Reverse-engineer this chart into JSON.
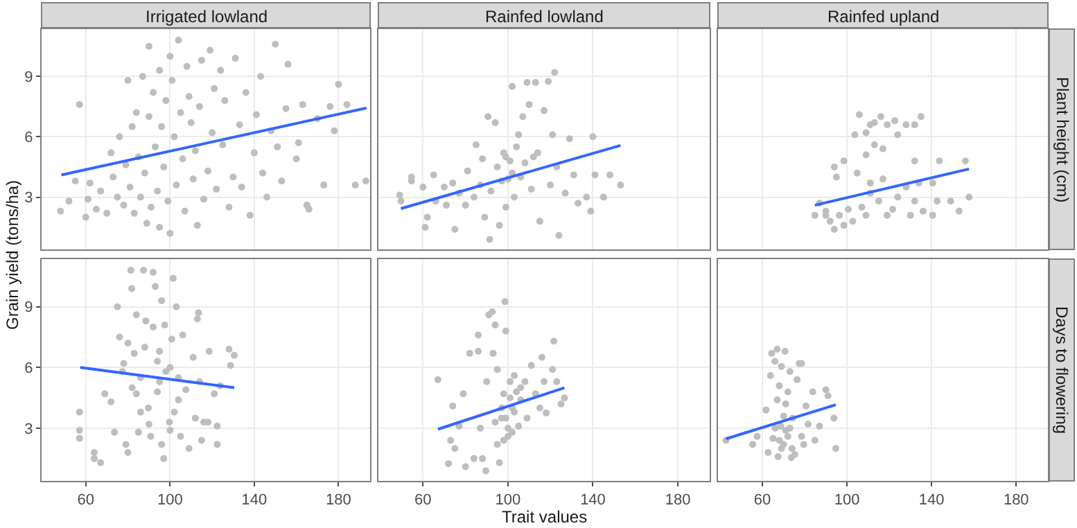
{
  "chart_data": [
    {
      "type": "scatter",
      "title": "Irrigated lowland",
      "ylabel": "Grain yield (tons/ha)",
      "xlim": [
        39,
        195
      ],
      "xticks": [
        60,
        100,
        140,
        180
      ],
      "ylim": [
        0.4,
        11.35
      ],
      "yticks": [
        3,
        6,
        9
      ],
      "grid": true,
      "tick_labels": "y",
      "marker": "circle",
      "series": [
        {
          "color": "#bebebe",
          "x": [
            48,
            52,
            57,
            55,
            60,
            61,
            62,
            65,
            67,
            70,
            72,
            73,
            75,
            76,
            78,
            79,
            80,
            81,
            82,
            83,
            84,
            85,
            86,
            87,
            88,
            89,
            90,
            90,
            91,
            92,
            93,
            94,
            95,
            95,
            96,
            97,
            98,
            99,
            100,
            100,
            101,
            102,
            103,
            104,
            105,
            106,
            107,
            108,
            109,
            110,
            111,
            112,
            113,
            114,
            115,
            116,
            118,
            119,
            120,
            121,
            122,
            124,
            125,
            126,
            128,
            130,
            131,
            133,
            134,
            136,
            138,
            140,
            141,
            143,
            144,
            146,
            148,
            150,
            151,
            153,
            155,
            156,
            160,
            161,
            163,
            165,
            166,
            170,
            173,
            176,
            178,
            180,
            184,
            188,
            193
          ],
          "values": [
            2.3,
            2.8,
            7.6,
            3.8,
            2.0,
            2.9,
            3.7,
            2.4,
            3.3,
            2.2,
            5.2,
            4.0,
            3.0,
            6.0,
            2.6,
            4.6,
            8.8,
            3.5,
            6.5,
            2.2,
            7.2,
            5.0,
            3.0,
            9.0,
            4.2,
            1.7,
            10.5,
            7.0,
            2.5,
            8.2,
            5.5,
            3.3,
            9.3,
            1.5,
            6.5,
            4.5,
            7.8,
            2.8,
            10.0,
            1.2,
            8.8,
            6.0,
            3.6,
            10.8,
            7.2,
            4.9,
            2.3,
            9.5,
            8.0,
            6.7,
            3.9,
            5.3,
            1.6,
            7.5,
            9.8,
            2.9,
            4.3,
            10.3,
            6.2,
            8.4,
            3.4,
            9.3,
            5.6,
            7.8,
            2.5,
            4.0,
            9.9,
            6.6,
            3.5,
            8.2,
            2.1,
            5.2,
            7.1,
            9.0,
            4.2,
            3.0,
            6.3,
            10.6,
            5.5,
            3.8,
            7.4,
            9.6,
            4.9,
            5.7,
            7.6,
            2.6,
            2.4,
            6.9,
            3.6,
            7.5,
            6.3,
            8.6,
            7.6,
            3.6,
            3.8
          ]
        },
        {
          "type": "line",
          "marker": "none",
          "color": "#3366ff",
          "x": [
            48.4,
            193.3
          ],
          "values": [
            4.1,
            7.43
          ]
        }
      ]
    },
    {
      "type": "scatter",
      "title": "Rainfed lowland",
      "xlim": [
        39,
        195
      ],
      "xticks": [
        60,
        100,
        140,
        180
      ],
      "ylim": [
        0.4,
        11.35
      ],
      "yticks": [
        3,
        6,
        9
      ],
      "grid": true,
      "tick_labels": false,
      "marker": "circle",
      "series": [
        {
          "color": "#bebebe",
          "x": [
            49,
            49.6,
            54.6,
            54.6,
            60,
            65,
            62,
            61,
            71,
            75,
            77,
            81,
            85,
            87,
            89,
            90.6,
            94,
            96,
            91.4,
            98,
            99,
            100,
            101,
            102,
            103,
            105,
            107,
            109,
            110,
            111,
            113,
            114,
            115,
            117,
            119,
            120,
            122,
            121,
            123,
            124,
            127,
            129,
            131,
            133,
            137,
            139,
            140,
            141,
            145,
            148,
            153,
            95,
            97,
            99,
            102,
            104,
            106,
            108,
            112,
            88,
            92,
            84,
            80,
            70,
            66,
            74
          ],
          "values": [
            3.1,
            2.8,
            4.0,
            3.8,
            3.5,
            4.1,
            2.0,
            1.5,
            2.6,
            1.4,
            3.2,
            4.3,
            5.6,
            3.6,
            2.0,
            7.0,
            6.7,
            1.6,
            0.9,
            5.2,
            2.5,
            3.9,
            4.8,
            8.5,
            3.0,
            6.1,
            7.0,
            8.7,
            7.6,
            3.4,
            8.7,
            5.2,
            1.8,
            7.3,
            8.75,
            3.6,
            9.2,
            6.1,
            4.5,
            1.1,
            3.2,
            5.9,
            4.1,
            2.7,
            3.0,
            2.3,
            6.0,
            4.1,
            3.0,
            4.1,
            3.6,
            4.5,
            3.8,
            5.0,
            4.2,
            5.5,
            4.0,
            4.7,
            5.0,
            4.9,
            3.3,
            3.0,
            2.6,
            3.5,
            2.8,
            3.7
          ]
        },
        {
          "type": "line",
          "marker": "none",
          "color": "#3366ff",
          "x": [
            49.6,
            153
          ],
          "values": [
            2.43,
            5.57
          ]
        }
      ]
    },
    {
      "type": "scatter",
      "title": "Rainfed upland",
      "annotations": [
        "Plant height (cm)"
      ],
      "xlim": [
        39,
        195
      ],
      "xticks": [
        60,
        100,
        140,
        180
      ],
      "ylim": [
        0.4,
        11.35
      ],
      "yticks": [
        3,
        6,
        9
      ],
      "grid": true,
      "tick_labels": false,
      "marker": "circle",
      "series": [
        {
          "color": "#bebebe",
          "x": [
            84.8,
            87,
            90,
            94,
            98.5,
            95,
            103.7,
            105.8,
            109,
            111,
            113,
            116,
            119,
            122.6,
            127.9,
            132,
            135,
            124,
            117,
            113,
            109,
            104.8,
            111,
            115,
            119,
            124,
            128,
            132,
            136,
            140.5,
            142.6,
            143.7,
            149,
            153,
            156,
            157.7,
            98.5,
            102.7,
            109,
            92,
            96.4,
            100.6,
            107,
            121.6,
            130,
            134,
            132,
            140.5,
            111,
            117,
            94,
            90
          ],
          "values": [
            2.1,
            2.7,
            2.3,
            4.5,
            4.8,
            4.0,
            6.1,
            7.1,
            6.2,
            6.6,
            6.7,
            7.0,
            6.6,
            6.8,
            6.6,
            6.6,
            7.0,
            6.1,
            5.4,
            5.6,
            5.1,
            4.2,
            3.7,
            2.8,
            2.1,
            3.0,
            3.5,
            2.8,
            2.3,
            2.1,
            2.8,
            4.8,
            2.8,
            2.3,
            4.8,
            3.0,
            1.6,
            1.8,
            2.1,
            1.8,
            2.1,
            2.4,
            2.5,
            2.4,
            2.1,
            3.7,
            4.8,
            3.7,
            3.2,
            3.9,
            1.4,
            2.1
          ]
        },
        {
          "type": "line",
          "marker": "none",
          "color": "#3366ff",
          "x": [
            84.8,
            157.7
          ],
          "values": [
            2.6,
            4.4
          ]
        }
      ]
    },
    {
      "type": "scatter",
      "xlim": [
        39,
        195
      ],
      "xticks": [
        60,
        100,
        140,
        180
      ],
      "ylim": [
        0.4,
        11.35
      ],
      "yticks": [
        3,
        6,
        9
      ],
      "grid": true,
      "marker": "circle",
      "series": [
        {
          "color": "#bebebe",
          "x": [
            57,
            57,
            57,
            64,
            64,
            67,
            69,
            72,
            73.6,
            75,
            76,
            77.4,
            79,
            80,
            81.4,
            81.8,
            83,
            84,
            85,
            87.4,
            88.5,
            89.7,
            90.8,
            92,
            93,
            94,
            95,
            96,
            97,
            97.5,
            99.7,
            100.8,
            101.5,
            103,
            104,
            105,
            106,
            107.5,
            109,
            111,
            112,
            113,
            113.5,
            114,
            115,
            116,
            118,
            118.6,
            121,
            122.4,
            122.4,
            123.8,
            128,
            128.7,
            130.5,
            88,
            92,
            95,
            98,
            86,
            90,
            94,
            100,
            102,
            96,
            84,
            82,
            80,
            78,
            86,
            100,
            104
          ],
          "values": [
            3.8,
            2.9,
            2.5,
            1.8,
            1.5,
            1.3,
            4.7,
            4.3,
            2.8,
            9.0,
            7.5,
            5.8,
            2.2,
            1.8,
            10.8,
            9.9,
            6.7,
            4.7,
            2.8,
            10.8,
            8.3,
            4.0,
            2.6,
            10.7,
            10.0,
            6.3,
            5.3,
            2.2,
            1.5,
            8.1,
            3.3,
            7.4,
            10.4,
            9.0,
            4.4,
            2.6,
            7.6,
            4.9,
            2.0,
            6.5,
            3.5,
            8.4,
            8.7,
            5.3,
            2.4,
            3.3,
            3.3,
            6.8,
            4.7,
            3.1,
            2.2,
            5.1,
            6.9,
            6.1,
            6.6,
            7.0,
            8.0,
            6.8,
            5.8,
            5.5,
            3.2,
            4.8,
            2.9,
            3.8,
            9.3,
            8.6,
            5.0,
            7.2,
            6.2,
            3.8,
            6.0,
            5.5
          ]
        },
        {
          "type": "line",
          "marker": "none",
          "color": "#3366ff",
          "x": [
            57.3,
            130.5
          ],
          "values": [
            6.0,
            5.0
          ]
        }
      ]
    },
    {
      "type": "scatter",
      "xlabel": "Trait values",
      "xlim": [
        39,
        195
      ],
      "xticks": [
        60,
        100,
        140,
        180
      ],
      "ylim": [
        0.4,
        11.35
      ],
      "yticks": [
        3,
        6,
        9
      ],
      "grid": true,
      "tick_labels": "x",
      "marker": "circle",
      "series": [
        {
          "color": "#bebebe",
          "x": [
            67,
            72,
            73,
            74,
            75,
            77,
            79,
            80,
            82,
            84,
            86,
            86,
            87,
            88,
            89.6,
            90,
            91,
            92.6,
            93,
            94,
            95,
            95,
            96,
            97,
            98,
            98.6,
            99,
            100,
            101,
            102,
            103,
            105,
            106,
            108,
            109,
            111,
            113,
            115,
            116,
            117,
            118,
            121,
            121.6,
            123,
            125,
            126.6,
            97,
            99,
            101,
            103,
            104,
            106,
            100,
            98,
            102,
            94
          ],
          "values": [
            5.4,
            1.25,
            2.4,
            4.1,
            2.0,
            3.1,
            4.7,
            1.1,
            6.7,
            1.5,
            7.6,
            6.8,
            3.0,
            1.5,
            0.9,
            5.3,
            8.6,
            8.75,
            6.7,
            8.1,
            5.9,
            2.2,
            1.3,
            3.5,
            4.7,
            9.25,
            7.8,
            2.6,
            5.3,
            4.0,
            5.6,
            3.1,
            4.4,
            5.3,
            3.5,
            6.1,
            4.7,
            4.0,
            6.5,
            5.3,
            3.75,
            5.9,
            7.3,
            5.3,
            4.2,
            4.5,
            4.0,
            3.5,
            4.5,
            3.8,
            4.8,
            5.0,
            3.0,
            2.4,
            2.8,
            3.3
          ]
        },
        {
          "type": "line",
          "marker": "none",
          "color": "#3366ff",
          "x": [
            67,
            126.6
          ],
          "values": [
            2.95,
            5.0
          ]
        }
      ]
    },
    {
      "type": "scatter",
      "annotations": [
        "Days to flowering"
      ],
      "xlim": [
        39,
        195
      ],
      "xticks": [
        60,
        100,
        140,
        180
      ],
      "ylim": [
        0.4,
        11.35
      ],
      "yticks": [
        3,
        6,
        9
      ],
      "grid": true,
      "tick_labels": "x",
      "marker": "circle",
      "series": [
        {
          "color": "#bebebe",
          "x": [
            42.8,
            55.4,
            57.5,
            61.7,
            62.7,
            63.8,
            64.4,
            65.9,
            67,
            67.4,
            68,
            68.6,
            69,
            70,
            70.7,
            71,
            72,
            73,
            73.7,
            74.3,
            75.3,
            76.4,
            77.4,
            78.5,
            78.5,
            79.5,
            80.6,
            81.6,
            83.8,
            84.8,
            87,
            90,
            91,
            93.8,
            94.7,
            66,
            68,
            70,
            72,
            69,
            71,
            67,
            73,
            65,
            74
          ],
          "values": [
            2.4,
            2.2,
            2.6,
            3.9,
            1.8,
            5.6,
            6.7,
            6.3,
            6.9,
            1.6,
            5.1,
            3.1,
            6.05,
            2.2,
            6.8,
            4.2,
            2.6,
            5.8,
            1.55,
            3.5,
            1.7,
            5.4,
            6.2,
            6.2,
            2.6,
            2.2,
            4.1,
            3.2,
            4.8,
            2.4,
            3.1,
            4.9,
            4.6,
            3.5,
            2.0,
            3.0,
            2.4,
            3.6,
            4.8,
            2.0,
            2.9,
            4.4,
            3.0,
            2.5,
            2.0
          ]
        },
        {
          "type": "line",
          "marker": "none",
          "color": "#3366ff",
          "x": [
            42.8,
            94.7
          ],
          "values": [
            2.48,
            4.16
          ]
        }
      ]
    }
  ]
}
